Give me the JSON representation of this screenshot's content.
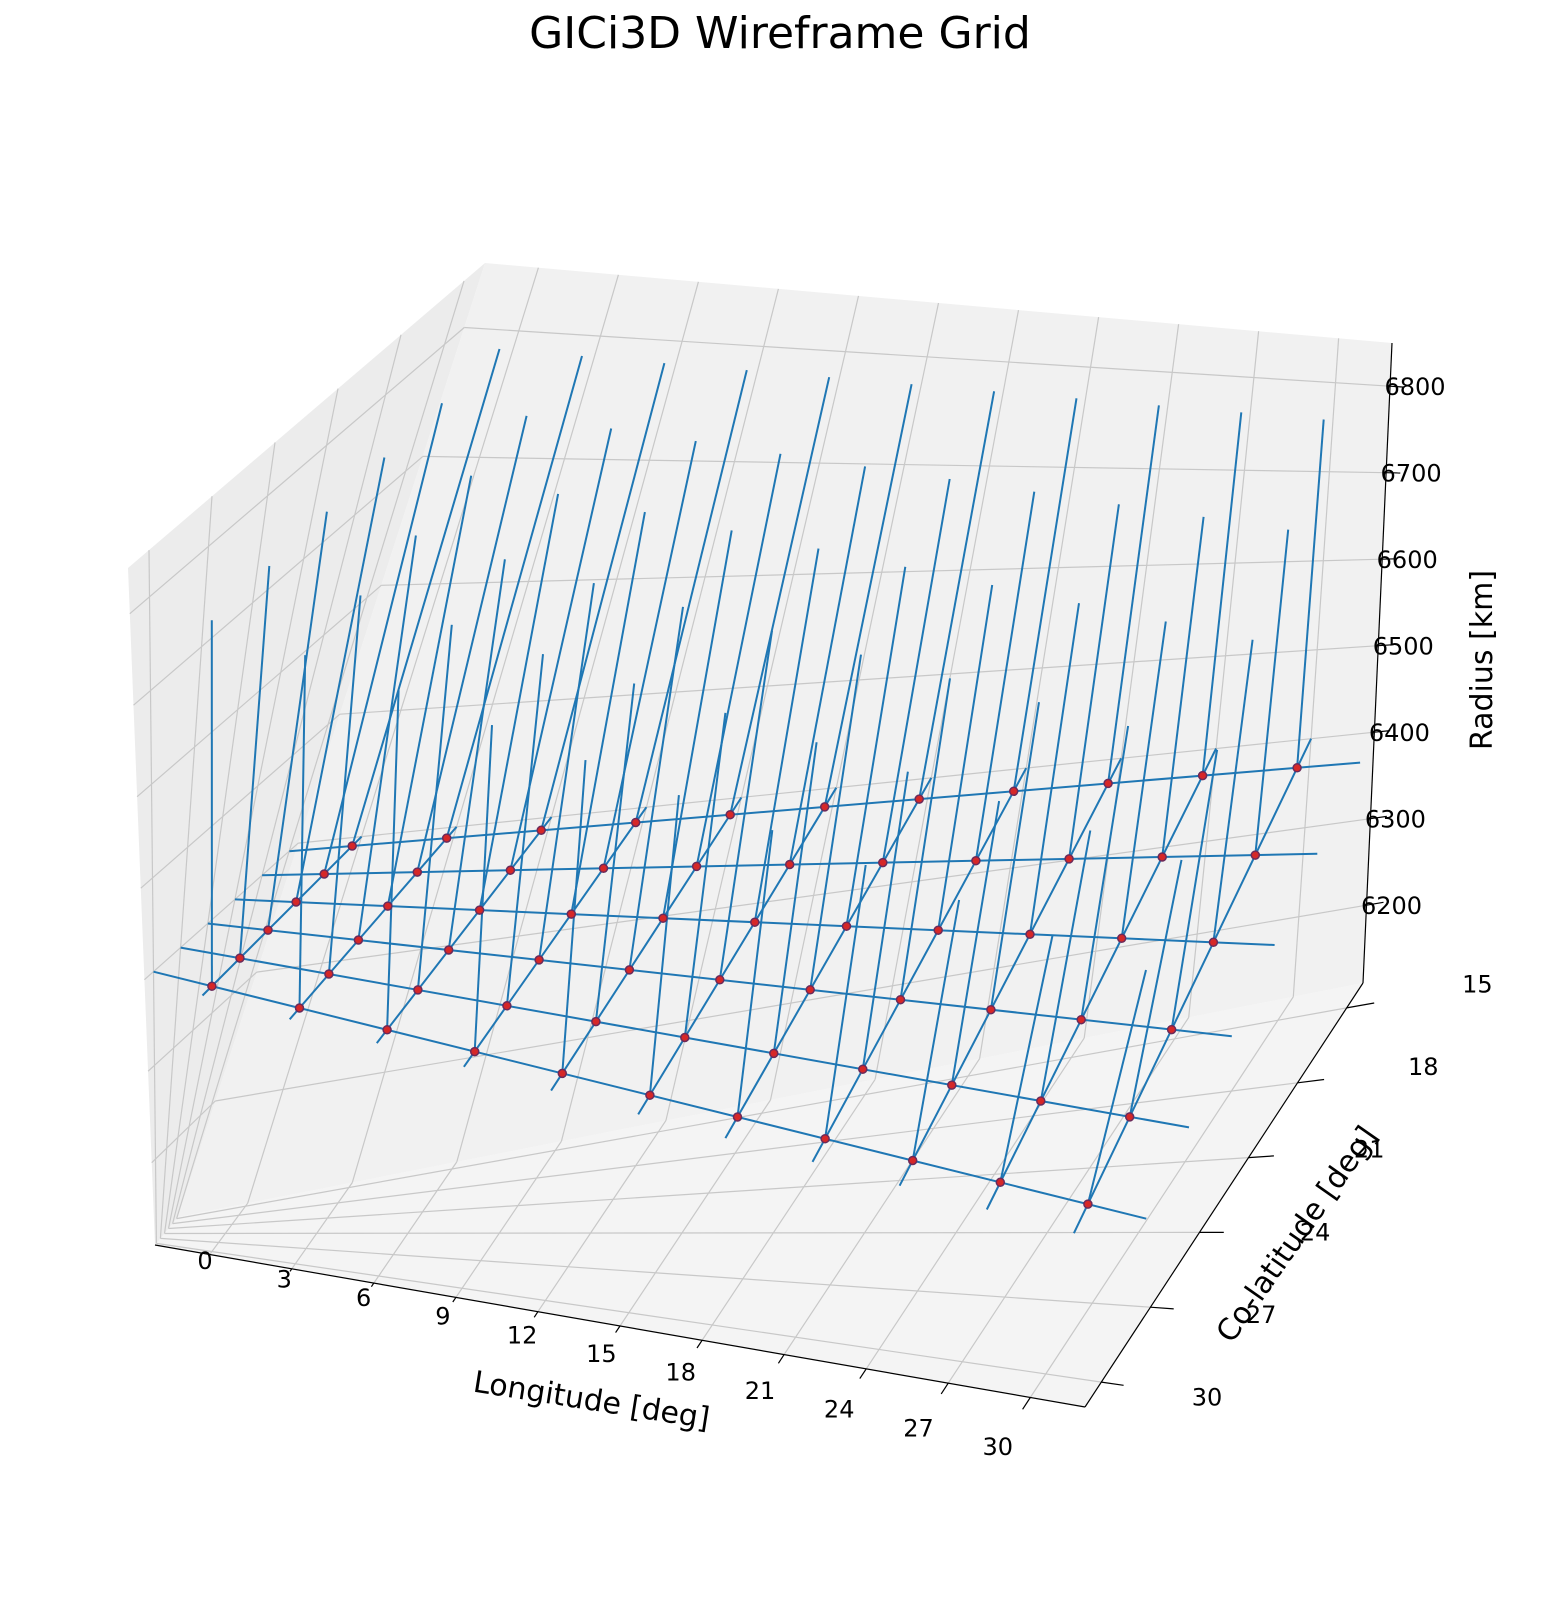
{
  "chart_data": {
    "type": "3d-wireframe",
    "title": "GICi3D Wireframe Grid",
    "x_axis": {
      "label": "Longitude [deg]",
      "ticks": [
        0,
        3,
        6,
        9,
        12,
        15,
        18,
        21,
        24,
        27,
        30
      ],
      "range": [
        -2,
        32
      ]
    },
    "y_axis": {
      "label": "Co-latitude [deg]",
      "ticks": [
        15,
        18,
        21,
        24,
        27,
        30
      ],
      "range": [
        14,
        31
      ]
    },
    "z_axis": {
      "label": "Radius [km]",
      "ticks": [
        6200,
        6300,
        6400,
        6500,
        6600,
        6700,
        6800
      ],
      "range": [
        6110,
        6850
      ]
    },
    "grid": true,
    "node_longitudes": [
      0,
      3,
      6,
      9,
      12,
      15,
      18,
      21,
      24,
      27,
      30
    ],
    "node_colatitudes": [
      15,
      18,
      21,
      24,
      27,
      30
    ],
    "node_radius": 6400,
    "radial_segment": [
      6400,
      6800
    ],
    "longitude_segment": [
      -2,
      32
    ],
    "colatitude_segment": [
      14,
      31
    ],
    "colors": {
      "line": "#1f77b4",
      "node_fill": "#d62728",
      "node_edge": "#6b2a5a",
      "pane": "#f2f2f2",
      "gridline": "#c8c8c8"
    }
  }
}
